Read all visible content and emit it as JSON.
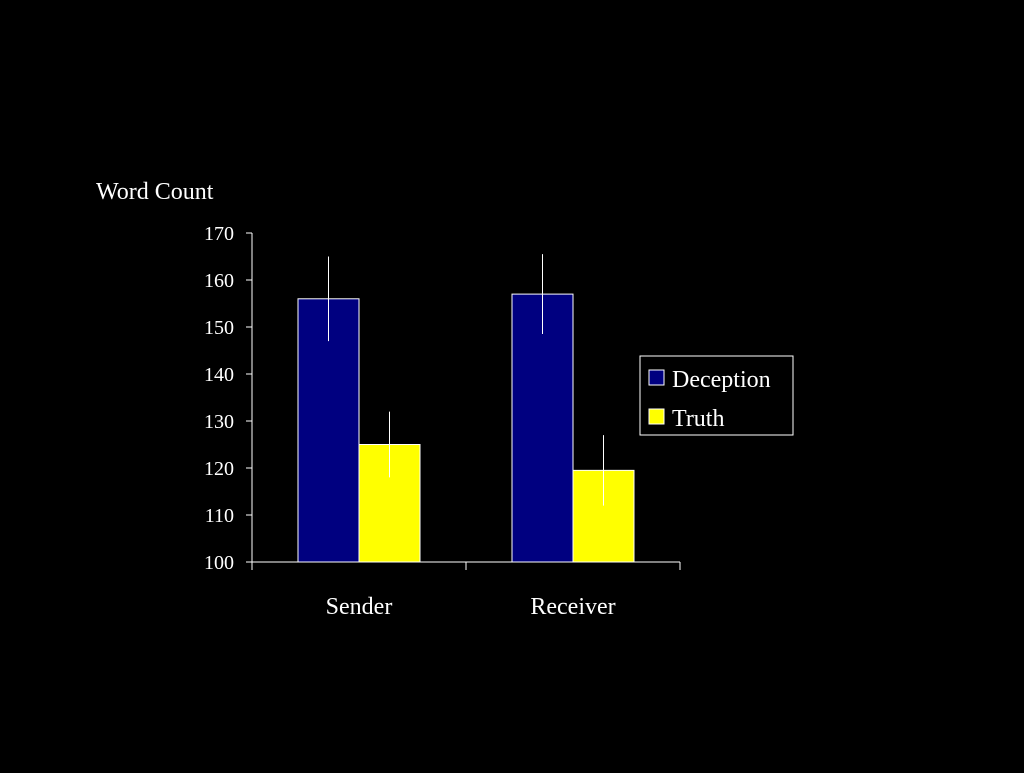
{
  "chart_data": {
    "type": "bar",
    "ylabel": "Word Count",
    "categories": [
      "Sender",
      "Receiver"
    ],
    "ylim": [
      100,
      170
    ],
    "yticks": [
      100,
      110,
      120,
      130,
      140,
      150,
      160,
      170
    ],
    "series": [
      {
        "name": "Deception",
        "color": "#000080",
        "values": [
          156,
          157
        ],
        "error": [
          9,
          8.5
        ]
      },
      {
        "name": "Truth",
        "color": "#ffff00",
        "values": [
          125,
          119.5
        ],
        "error": [
          7,
          7.5
        ]
      }
    ],
    "legend_position": "right",
    "grid": false
  }
}
